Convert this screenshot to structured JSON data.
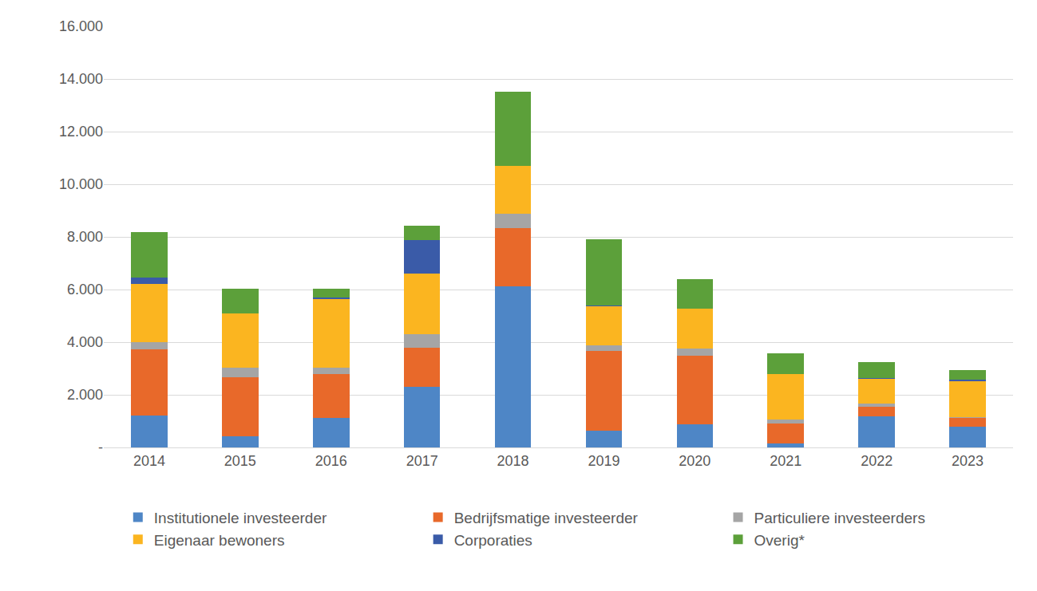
{
  "chart_data": {
    "type": "bar",
    "stacked": true,
    "grid": true,
    "legend": "bottom",
    "categories": [
      "2014",
      "2015",
      "2016",
      "2017",
      "2018",
      "2019",
      "2020",
      "2021",
      "2022",
      "2023"
    ],
    "ylim": [
      0,
      16000
    ],
    "yticks": [
      {
        "value": 0,
        "label": "-"
      },
      {
        "value": 2000,
        "label": "2.000"
      },
      {
        "value": 4000,
        "label": "4.000"
      },
      {
        "value": 6000,
        "label": "6.000"
      },
      {
        "value": 8000,
        "label": "8.000"
      },
      {
        "value": 10000,
        "label": "10.000"
      },
      {
        "value": 12000,
        "label": "12.000"
      },
      {
        "value": 14000,
        "label": "14.000"
      },
      {
        "value": 16000,
        "label": "16.000"
      }
    ],
    "series": [
      {
        "name": "Institutionele investeerder",
        "color": "#4e86c6",
        "values": [
          1200,
          420,
          1120,
          2300,
          6120,
          640,
          880,
          150,
          1180,
          790
        ]
      },
      {
        "name": "Bedrijfsmatige investeerder",
        "color": "#e8692a",
        "values": [
          2530,
          2250,
          1670,
          1490,
          2210,
          3030,
          2600,
          760,
          370,
          330
        ]
      },
      {
        "name": "Particuliere investeerders",
        "color": "#a5a5a5",
        "values": [
          270,
          360,
          240,
          510,
          550,
          210,
          280,
          150,
          120,
          30
        ]
      },
      {
        "name": "Eigenaar bewoners",
        "color": "#fbb520",
        "values": [
          2210,
          2060,
          2610,
          2310,
          1820,
          1480,
          1510,
          1730,
          940,
          1370
        ]
      },
      {
        "name": "Corporaties",
        "color": "#3a5ba8",
        "values": [
          240,
          0,
          60,
          1270,
          0,
          30,
          0,
          0,
          30,
          60
        ]
      },
      {
        "name": "Overig*",
        "color": "#5ca03a",
        "values": [
          1730,
          940,
          330,
          540,
          2820,
          2520,
          1120,
          790,
          600,
          360
        ]
      }
    ]
  }
}
